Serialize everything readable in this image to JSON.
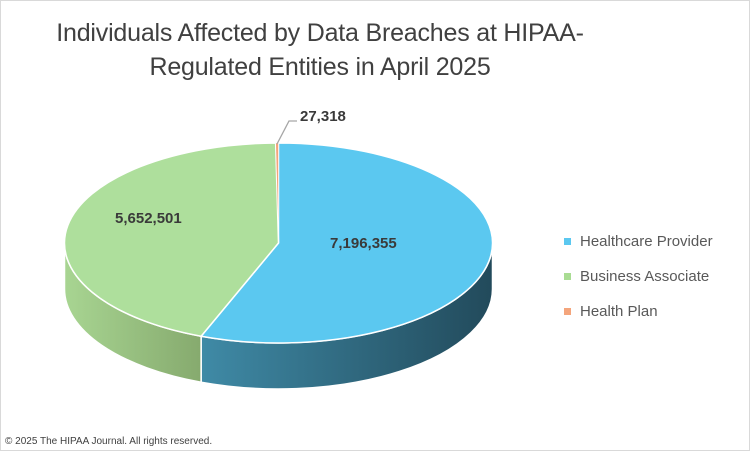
{
  "chart": {
    "title_line1": "Individuals Affected by Data Breaches at HIPAA-",
    "title_line2": "Regulated Entities in April 2025",
    "footer": "© 2025 The HIPAA Journal. All rights reserved."
  },
  "labels": {
    "healthcare_provider": "7,196,355",
    "business_associate": "5,652,501",
    "health_plan": "27,318"
  },
  "legend": [
    {
      "label": "Healthcare Provider",
      "color": "#5BC8F0"
    },
    {
      "label": "Business Associate",
      "color": "#A9DC93"
    },
    {
      "label": "Health Plan",
      "color": "#F4A57C"
    }
  ],
  "colors": {
    "healthcare_provider_top": "#5BC8F0",
    "healthcare_provider_side_light": "#3F8AA6",
    "healthcare_provider_side_dark": "#224A5B",
    "business_associate_top": "#AEDF9C",
    "business_associate_side_light": "#A8D592",
    "business_associate_side_dark": "#86AA6E",
    "health_plan_top": "#F4A57C"
  },
  "chart_data": {
    "type": "pie",
    "title": "Individuals Affected by Data Breaches at HIPAA-Regulated Entities in April 2025",
    "categories": [
      "Healthcare Provider",
      "Business Associate",
      "Health Plan"
    ],
    "values": [
      7196355,
      5652501,
      27318
    ],
    "data_labels": [
      "7,196,355",
      "5,652,501",
      "27,318"
    ],
    "colors": [
      "#5BC8F0",
      "#A9DC93",
      "#F4A57C"
    ],
    "legend_position": "right",
    "style": "3d-pie",
    "start_angle_deg": 0,
    "direction": "clockwise"
  }
}
